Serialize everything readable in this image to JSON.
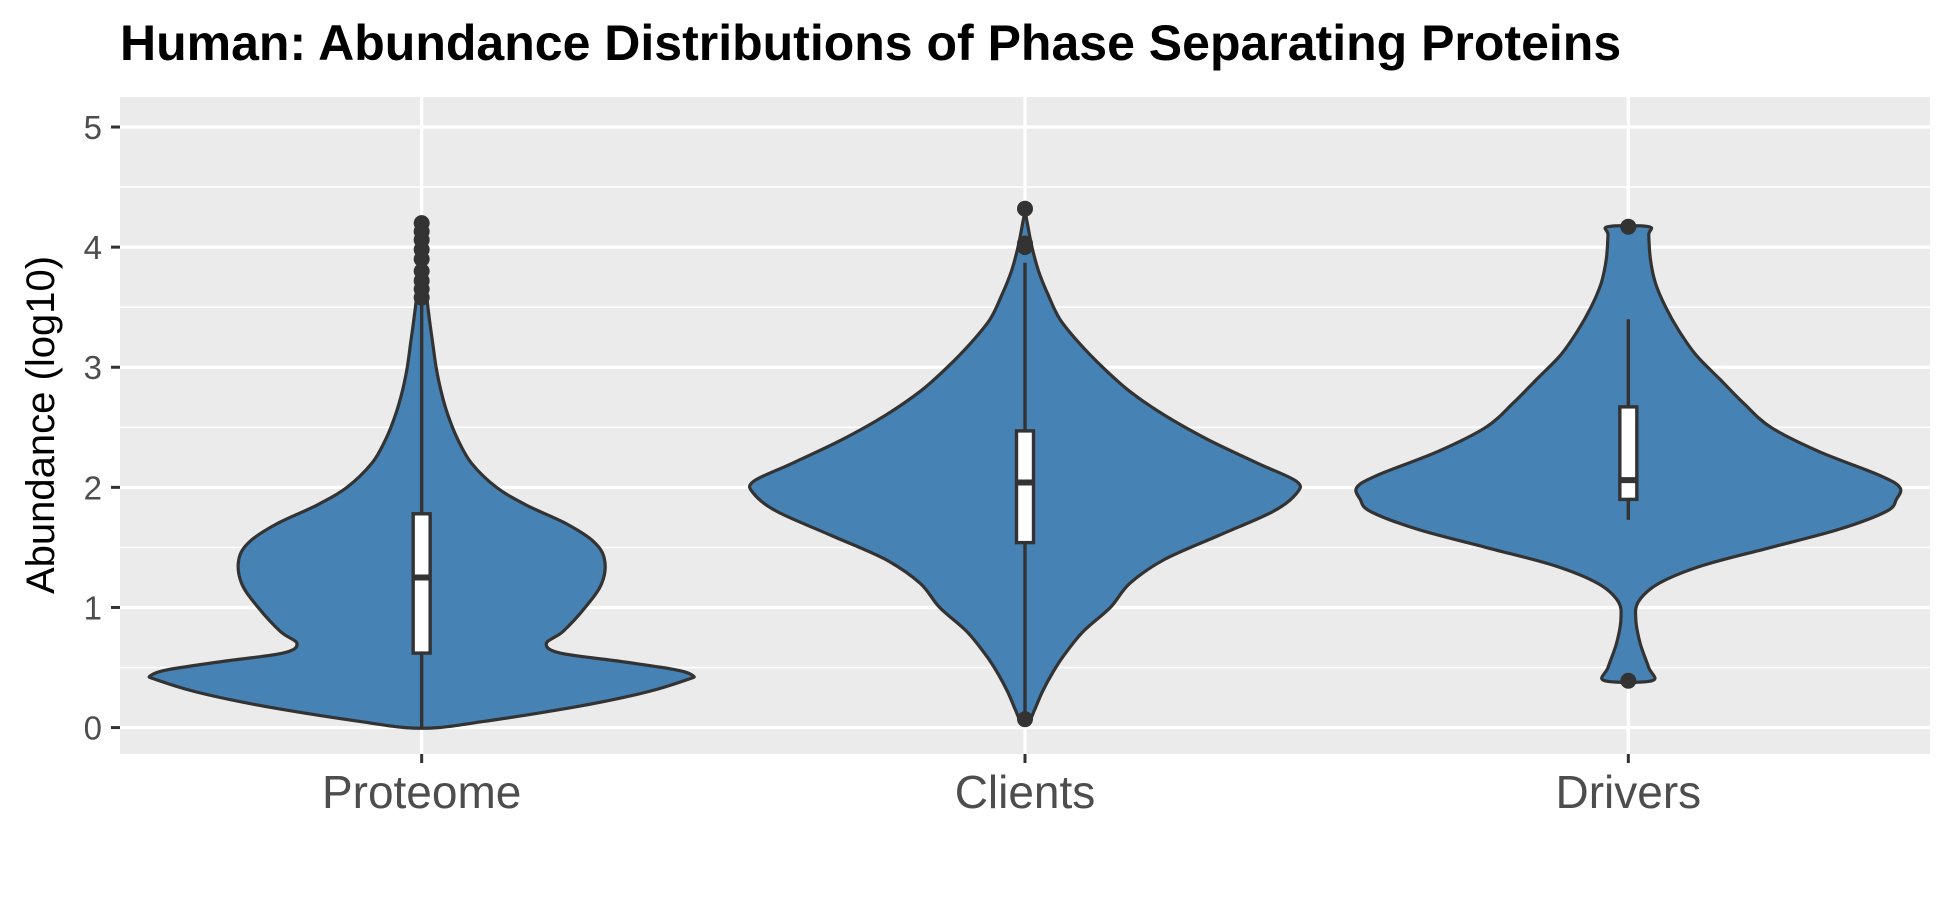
{
  "chart_data": {
    "type": "violin",
    "title": "Human: Abundance Distributions of Phase Separating Proteins",
    "xlabel": "",
    "ylabel": "Abundance (log10)",
    "ylim": [
      -0.22,
      5.25
    ],
    "yticks": [
      0,
      1,
      2,
      3,
      4,
      5
    ],
    "grid": true,
    "legend": "none",
    "fill_color": "#4682b4",
    "outline_color": "#333333",
    "panel_color": "#ebebeb",
    "categories": [
      "Proteome",
      "Clients",
      "Drivers"
    ],
    "series": [
      {
        "category": "Proteome",
        "box": {
          "whisker_low": 0.0,
          "q1": 0.62,
          "median": 1.25,
          "q3": 1.78,
          "whisker_high": 3.53
        },
        "outliers": [
          3.58,
          3.65,
          3.72,
          3.8,
          3.9,
          3.98,
          4.06,
          4.13,
          4.2
        ],
        "density": [
          [
            0.0,
            0.06
          ],
          [
            0.05,
            0.22
          ],
          [
            0.12,
            0.42
          ],
          [
            0.2,
            0.62
          ],
          [
            0.3,
            0.82
          ],
          [
            0.4,
            0.96
          ],
          [
            0.43,
            0.98
          ],
          [
            0.48,
            0.92
          ],
          [
            0.55,
            0.72
          ],
          [
            0.62,
            0.5
          ],
          [
            0.7,
            0.45
          ],
          [
            0.8,
            0.51
          ],
          [
            1.0,
            0.59
          ],
          [
            1.2,
            0.65
          ],
          [
            1.4,
            0.66
          ],
          [
            1.55,
            0.62
          ],
          [
            1.7,
            0.52
          ],
          [
            1.85,
            0.38
          ],
          [
            2.0,
            0.27
          ],
          [
            2.2,
            0.18
          ],
          [
            2.4,
            0.13
          ],
          [
            2.6,
            0.095
          ],
          [
            2.8,
            0.07
          ],
          [
            3.0,
            0.052
          ],
          [
            3.2,
            0.04
          ],
          [
            3.4,
            0.028
          ],
          [
            3.6,
            0.018
          ],
          [
            3.9,
            0.01
          ],
          [
            4.2,
            0.004
          ]
        ]
      },
      {
        "category": "Clients",
        "box": {
          "whisker_low": 0.07,
          "q1": 1.54,
          "median": 2.04,
          "q3": 2.47,
          "whisker_high": 3.87
        },
        "outliers": [
          0.07,
          4.0,
          4.03,
          4.32
        ],
        "density": [
          [
            0.05,
            0.01
          ],
          [
            0.15,
            0.025
          ],
          [
            0.3,
            0.045
          ],
          [
            0.45,
            0.07
          ],
          [
            0.6,
            0.1
          ],
          [
            0.8,
            0.15
          ],
          [
            1.0,
            0.22
          ],
          [
            1.2,
            0.27
          ],
          [
            1.4,
            0.36
          ],
          [
            1.6,
            0.5
          ],
          [
            1.8,
            0.64
          ],
          [
            1.95,
            0.7
          ],
          [
            2.05,
            0.7
          ],
          [
            2.2,
            0.6
          ],
          [
            2.4,
            0.47
          ],
          [
            2.6,
            0.36
          ],
          [
            2.8,
            0.27
          ],
          [
            3.0,
            0.2
          ],
          [
            3.2,
            0.14
          ],
          [
            3.4,
            0.09
          ],
          [
            3.6,
            0.06
          ],
          [
            3.8,
            0.035
          ],
          [
            4.0,
            0.018
          ],
          [
            4.2,
            0.006
          ],
          [
            4.3,
            0.0
          ]
        ]
      },
      {
        "category": "Drivers",
        "box": {
          "whisker_low": 1.73,
          "q1": 1.9,
          "median": 2.06,
          "q3": 2.67,
          "whisker_high": 3.4
        },
        "outliers": [
          0.39,
          4.17
        ],
        "density": [
          [
            0.39,
            0.07
          ],
          [
            0.5,
            0.06
          ],
          [
            0.7,
            0.035
          ],
          [
            0.9,
            0.022
          ],
          [
            1.05,
            0.03
          ],
          [
            1.2,
            0.09
          ],
          [
            1.35,
            0.22
          ],
          [
            1.5,
            0.42
          ],
          [
            1.65,
            0.62
          ],
          [
            1.8,
            0.76
          ],
          [
            1.9,
            0.79
          ],
          [
            2.0,
            0.8
          ],
          [
            2.1,
            0.74
          ],
          [
            2.3,
            0.56
          ],
          [
            2.5,
            0.42
          ],
          [
            2.7,
            0.34
          ],
          [
            2.9,
            0.27
          ],
          [
            3.1,
            0.2
          ],
          [
            3.3,
            0.15
          ],
          [
            3.5,
            0.11
          ],
          [
            3.7,
            0.08
          ],
          [
            3.9,
            0.065
          ],
          [
            4.1,
            0.06
          ],
          [
            4.17,
            0.06
          ]
        ]
      }
    ]
  }
}
